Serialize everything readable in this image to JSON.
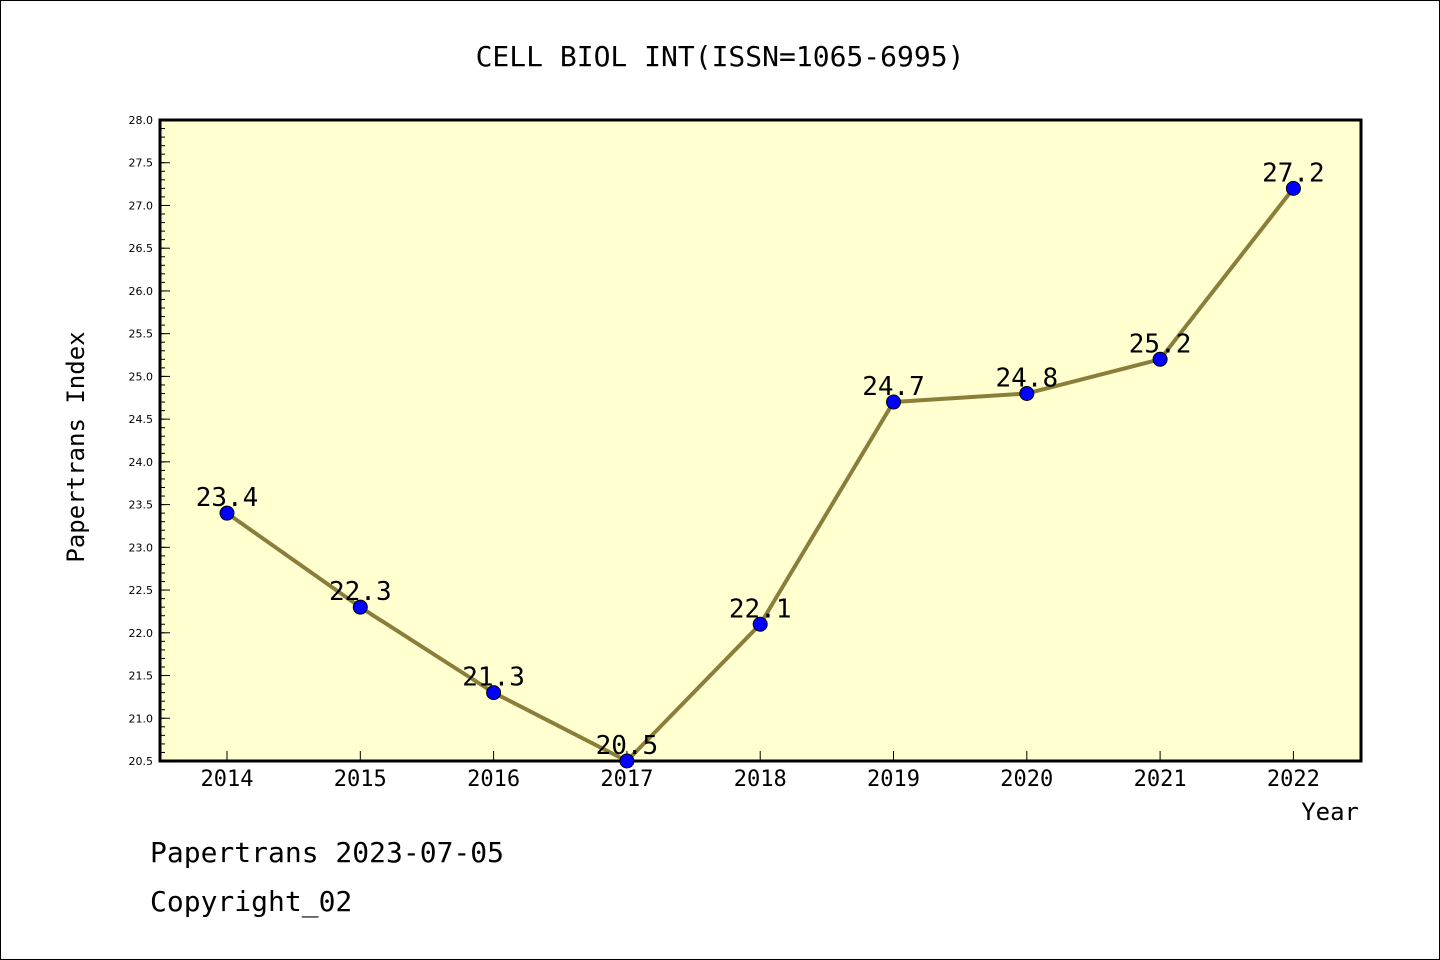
{
  "chart_data": {
    "type": "line",
    "title": "CELL BIOL INT(ISSN=1065-6995)",
    "xlabel": "Year",
    "ylabel": "Papertrans Index",
    "ylim": [
      20.5,
      28.0
    ],
    "yticks": [
      "20.5",
      "21.0",
      "21.5",
      "22.0",
      "22.5",
      "23.0",
      "23.5",
      "24.0",
      "24.5",
      "25.0",
      "25.5",
      "26.0",
      "26.5",
      "27.0",
      "27.5",
      "28.0"
    ],
    "categories": [
      "2014",
      "2015",
      "2016",
      "2017",
      "2018",
      "2019",
      "2020",
      "2021",
      "2022"
    ],
    "series": [
      {
        "values": [
          23.4,
          22.3,
          21.3,
          20.5,
          22.1,
          24.7,
          24.8,
          25.2,
          27.2
        ],
        "labels": [
          "23.4",
          "22.3",
          "21.3",
          "20.5",
          "22.1",
          "24.7",
          "24.8",
          "25.2",
          "27.2"
        ]
      }
    ],
    "grid": false,
    "legend": "none",
    "colors": {
      "plot_background": "#FFFFD0",
      "line": "#8B7D3A",
      "marker": "#0000FF",
      "axis": "#000000"
    }
  },
  "footer": {
    "date_line": "Papertrans 2023-07-05",
    "copyright_line": "Copyright_02"
  }
}
